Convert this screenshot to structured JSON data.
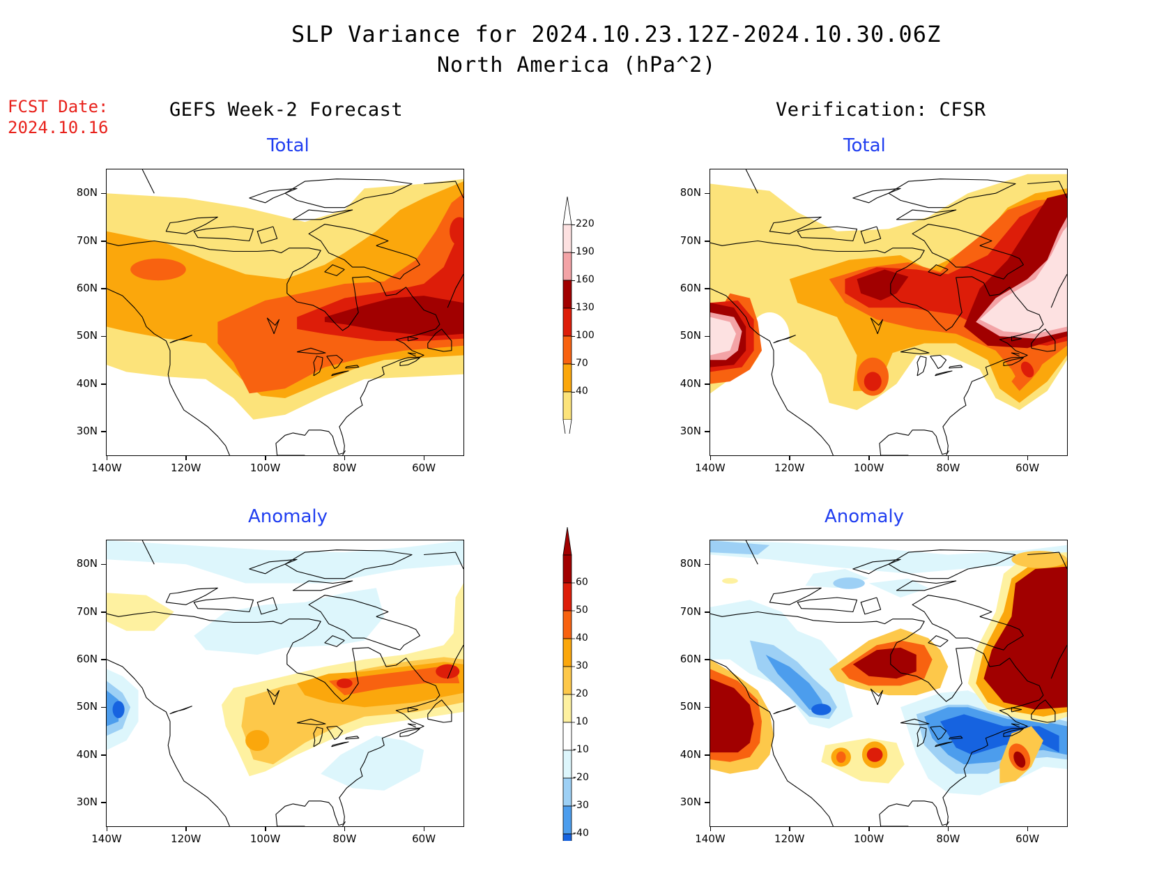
{
  "header": {
    "title": "SLP Variance for 2024.10.23.12Z-2024.10.30.06Z",
    "subtitle": "North America (hPa^2)",
    "fcst_label": "FCST Date:",
    "fcst_date": "2024.10.16"
  },
  "columns": {
    "left_title": "GEFS Week-2 Forecast",
    "right_title": "Verification: CFSR"
  },
  "panels": [
    {
      "id": "fcst-total",
      "title": "Total"
    },
    {
      "id": "verif-total",
      "title": "Total"
    },
    {
      "id": "fcst-anomaly",
      "title": "Anomaly"
    },
    {
      "id": "verif-anomaly",
      "title": "Anomaly"
    }
  ],
  "axes": {
    "x_ticks": [
      "140W",
      "120W",
      "100W",
      "80W",
      "60W"
    ],
    "y_ticks": [
      "80N",
      "70N",
      "60N",
      "50N",
      "40N",
      "30N"
    ],
    "lon_range": [
      -140,
      -50
    ],
    "lat_range": [
      25,
      85
    ]
  },
  "colorbars": {
    "total": {
      "levels": [
        "40",
        "70",
        "100",
        "130",
        "160",
        "190",
        "220"
      ],
      "colors": [
        "#fce37a",
        "#fba70c",
        "#f86210",
        "#dd1d09",
        "#a10000",
        "#f3a3a6",
        "#fde1e1"
      ]
    },
    "anomaly": {
      "levels": [
        "60",
        "50",
        "40",
        "30",
        "20",
        "10",
        "-10",
        "-20",
        "-30",
        "-40"
      ],
      "colors": [
        "#a10000",
        "#dd1d09",
        "#f86210",
        "#fba70c",
        "#fdc84a",
        "#fef1a0",
        "#ffffff",
        "#ddf6fc",
        "#9dd0f5",
        "#4c9ded",
        "#1663e0"
      ]
    }
  }
}
